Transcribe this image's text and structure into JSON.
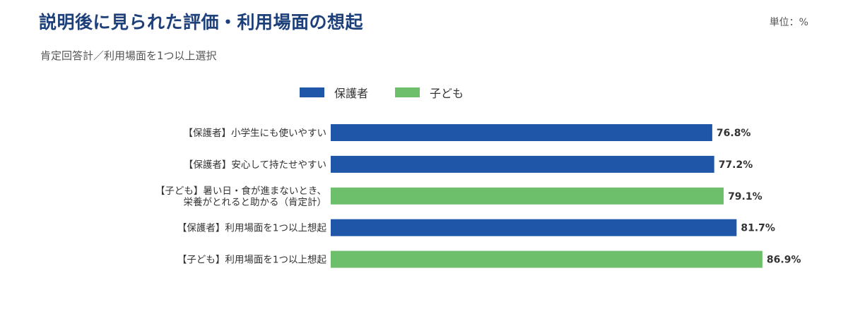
{
  "header": {
    "title": "説明後に見られた評価・利用場面の想起",
    "unit": "単位：%",
    "subtitle": "肯定回答計／利用場面を1つ以上選択"
  },
  "colors": {
    "保護者": "#1f56a8",
    "子ども": "#6ebf6c",
    "title": "#1d3f7a"
  },
  "chart_data": {
    "type": "bar",
    "orientation": "horizontal",
    "xlim": [
      0,
      100
    ],
    "legend": [
      "保護者",
      "子ども"
    ],
    "legend_position": "top",
    "grid": false,
    "bars": [
      {
        "label_lines": [
          "【保護者】小学生にも使いやすい"
        ],
        "group": "保護者",
        "value": 76.8,
        "value_label": "76.8%"
      },
      {
        "label_lines": [
          "【保護者】安心して持たせやすい"
        ],
        "group": "保護者",
        "value": 77.2,
        "value_label": "77.2%"
      },
      {
        "label_lines": [
          "【子ども】暑い日・食が進まないとき、",
          "栄養がとれると助かる（肯定計）"
        ],
        "group": "子ども",
        "value": 79.1,
        "value_label": "79.1%"
      },
      {
        "label_lines": [
          "【保護者】利用場面を1つ以上想起"
        ],
        "group": "保護者",
        "value": 81.7,
        "value_label": "81.7%"
      },
      {
        "label_lines": [
          "【子ども】利用場面を1つ以上想起"
        ],
        "group": "子ども",
        "value": 86.9,
        "value_label": "86.9%"
      }
    ]
  }
}
